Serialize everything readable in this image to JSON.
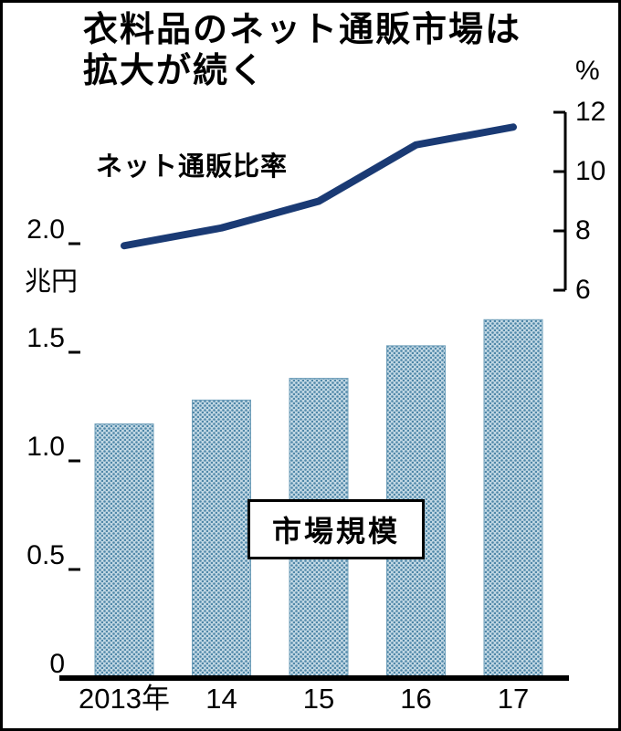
{
  "title": {
    "line1": "衣料品のネット通販市場は",
    "line2": "拡大が続く"
  },
  "labels": {
    "line_series": "ネット通販比率",
    "bar_series": "市場規模"
  },
  "axes": {
    "left": {
      "unit": "兆円",
      "ticks": [
        "2.0",
        "1.5",
        "1.0",
        "0.5",
        "0"
      ],
      "tick_values": [
        2.0,
        1.5,
        1.0,
        0.5,
        0
      ]
    },
    "right": {
      "unit": "%",
      "ticks": [
        "12",
        "10",
        "8",
        "6"
      ],
      "tick_values": [
        12,
        10,
        8,
        6
      ]
    },
    "x": {
      "labels": [
        "2013年",
        "14",
        "15",
        "16",
        "17"
      ]
    }
  },
  "colors": {
    "line": "#1a3a74",
    "bar_base": "#c2d8e4",
    "bar_dot": "#4f87a8",
    "bar_edge": "#6f9fba",
    "axis": "#000000"
  },
  "chart_data": {
    "type": "combo",
    "title": "衣料品のネット通販市場は拡大が続く",
    "categories": [
      "2013年",
      "14",
      "15",
      "16",
      "17"
    ],
    "series": [
      {
        "name": "市場規模",
        "type": "bar",
        "axis": "left",
        "unit": "兆円",
        "values": [
          1.17,
          1.28,
          1.38,
          1.53,
          1.65
        ]
      },
      {
        "name": "ネット通販比率",
        "type": "line",
        "axis": "right",
        "unit": "%",
        "values": [
          7.5,
          8.1,
          9.0,
          10.9,
          11.5
        ]
      }
    ],
    "left_axis": {
      "label": "兆円",
      "range": [
        0,
        2.0
      ]
    },
    "right_axis": {
      "label": "%",
      "range": [
        6,
        12
      ]
    },
    "grid": false,
    "legend": "inline-labels"
  }
}
